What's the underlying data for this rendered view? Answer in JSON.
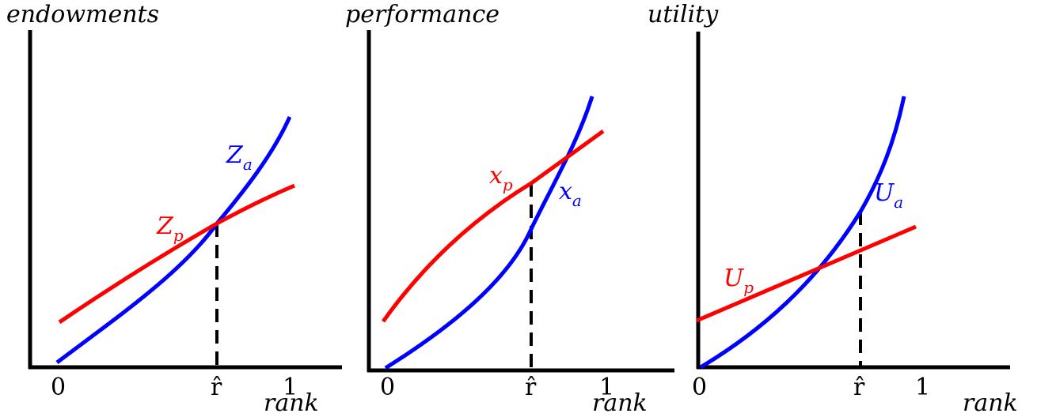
{
  "panels": [
    {
      "ylabel": "endowments",
      "xlabel": "rank",
      "ticks": [
        "0",
        "r̂",
        "1"
      ],
      "curves": [
        {
          "symbol": "Z",
          "sub": "a",
          "color": "#0000ff"
        },
        {
          "symbol": "Z",
          "sub": "p",
          "color": "#ff0000"
        }
      ]
    },
    {
      "ylabel": "performance",
      "xlabel": "rank",
      "ticks": [
        "0",
        "r̂",
        "1"
      ],
      "curves": [
        {
          "symbol": "x",
          "sub": "a",
          "color": "#0000ff"
        },
        {
          "symbol": "x",
          "sub": "p",
          "color": "#ff0000"
        }
      ]
    },
    {
      "ylabel": "utility",
      "xlabel": "rank",
      "ticks": [
        "0",
        "r̂",
        "1"
      ],
      "curves": [
        {
          "symbol": "U",
          "sub": "a",
          "color": "#0000ff"
        },
        {
          "symbol": "U",
          "sub": "p",
          "color": "#ff0000"
        }
      ]
    }
  ]
}
